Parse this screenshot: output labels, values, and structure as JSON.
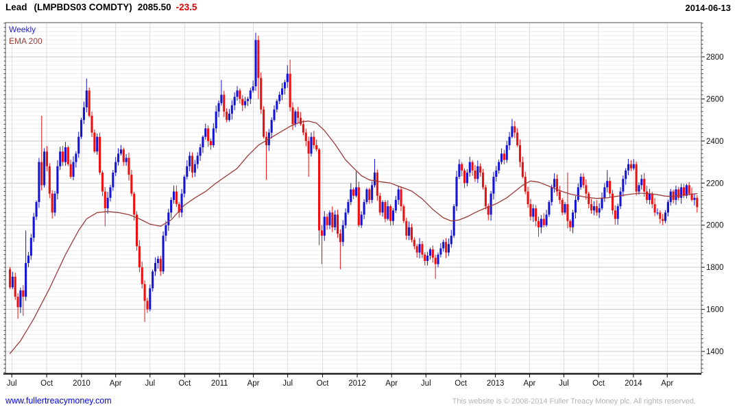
{
  "header": {
    "instrument": "Lead",
    "code": "(LMPBDS03 COMDTY)",
    "last": "2085.50",
    "change": "-23.5",
    "date": "2014-06-13"
  },
  "legend": {
    "series": "Weekly",
    "ema": "EMA 200"
  },
  "footer": {
    "site": "www.fullertreacymoney.com",
    "copyright": "This website is © 2008-2014 Fuller Treacy Money plc. All rights reserved."
  },
  "colors": {
    "candle_up": "#1414d7",
    "candle_down": "#ee1010",
    "ema_line": "#9b3a36",
    "legend_weekly": "#2323c8",
    "change_negative": "#e00000",
    "title_text": "#000000",
    "axis_text": "#111111",
    "link": "#0000e6",
    "copyright": "#b4b4b4",
    "grid_minor": "#ededed",
    "grid_major": "#c8c8c8",
    "grid_vertical": "#dcdcdc",
    "border": "#555555",
    "axis_line": "#111111"
  },
  "chart_data": {
    "type": "candlestick",
    "interval": "weekly",
    "title": "Lead (LMPBDS03 COMDTY)",
    "last_price": 2085.5,
    "change": -23.5,
    "as_of_date": "2014-06-13",
    "grid": true,
    "y_axis": {
      "side": "right",
      "labeled_ticks": [
        2800,
        2600,
        2400,
        2200,
        2000,
        1800,
        1600,
        1400
      ],
      "minor_step": 20,
      "price_top": 2963,
      "price_bottom": 1296
    },
    "x_axis": {
      "ticks": [
        [
          "Jul",
          0.7
        ],
        [
          "Oct",
          13.9
        ],
        [
          "2010",
          27.1
        ],
        [
          "Apr",
          40.0
        ],
        [
          "Jul",
          53.0
        ],
        [
          "Oct",
          66.1
        ],
        [
          "2011",
          79.3
        ],
        [
          "Apr",
          92.1
        ],
        [
          "Jul",
          105.1
        ],
        [
          "Oct",
          118.3
        ],
        [
          "2012",
          131.4
        ],
        [
          "Apr",
          144.4
        ],
        [
          "Jul",
          157.4
        ],
        [
          "Oct",
          170.6
        ],
        [
          "2013",
          183.7
        ],
        [
          "Apr",
          196.6
        ],
        [
          "Jul",
          209.6
        ],
        [
          "Oct",
          222.7
        ],
        [
          "2014",
          235.9
        ],
        [
          "Apr",
          248.7
        ]
      ]
    },
    "weeks": 261,
    "first_open": 1790,
    "closes": [
      1705,
      1755,
      1660,
      1610,
      1690,
      1660,
      1820,
      1855,
      1940,
      2040,
      2110,
      2300,
      2190,
      2350,
      2280,
      2150,
      2060,
      2150,
      2280,
      2350,
      2300,
      2370,
      2290,
      2230,
      2300,
      2340,
      2420,
      2500,
      2560,
      2640,
      2520,
      2440,
      2350,
      2420,
      2250,
      2160,
      2080,
      2130,
      2180,
      2250,
      2300,
      2340,
      2360,
      2300,
      2320,
      2240,
      2150,
      2050,
      1900,
      1800,
      1720,
      1640,
      1600,
      1700,
      1780,
      1820,
      1840,
      1780,
      1950,
      2000,
      2060,
      2120,
      2160,
      2100,
      2060,
      2150,
      2230,
      2280,
      2330,
      2250,
      2290,
      2330,
      2370,
      2420,
      2460,
      2400,
      2380,
      2460,
      2540,
      2580,
      2620,
      2540,
      2500,
      2530,
      2570,
      2610,
      2640,
      2600,
      2570,
      2590,
      2600,
      2640,
      2660,
      2880,
      2700,
      2550,
      2420,
      2380,
      2440,
      2500,
      2550,
      2590,
      2620,
      2650,
      2680,
      2720,
      2560,
      2480,
      2540,
      2510,
      2480,
      2440,
      2400,
      2340,
      2420,
      2380,
      2360,
      1975,
      1950,
      2040,
      2000,
      2060,
      1990,
      2050,
      1960,
      1920,
      2000,
      2060,
      2110,
      2170,
      2140,
      2180,
      2000,
      2050,
      2110,
      2170,
      2120,
      2190,
      2250,
      2140,
      2060,
      2110,
      2030,
      2090,
      2020,
      2070,
      2120,
      2170,
      2090,
      2020,
      1950,
      1990,
      1930,
      1900,
      1870,
      1910,
      1860,
      1830,
      1855,
      1885,
      1845,
      1815,
      1860,
      1890,
      1920,
      1870,
      1910,
      1950,
      2090,
      2230,
      2290,
      2260,
      2200,
      2250,
      2300,
      2260,
      2220,
      2280,
      2250,
      2180,
      2090,
      2050,
      2150,
      2230,
      2260,
      2300,
      2340,
      2310,
      2380,
      2420,
      2470,
      2440,
      2380,
      2300,
      2230,
      2160,
      2100,
      2040,
      2080,
      2020,
      1990,
      2030,
      2000,
      2050,
      2110,
      2180,
      2220,
      2160,
      2120,
      2060,
      2100,
      2020,
      1990,
      2060,
      2120,
      2180,
      2230,
      2190,
      2150,
      2100,
      2070,
      2090,
      2060,
      2080,
      2130,
      2180,
      2210,
      2150,
      2070,
      2030,
      2090,
      2160,
      2220,
      2260,
      2290,
      2270,
      2290,
      2160,
      2190,
      2220,
      2160,
      2120,
      2150,
      2100,
      2060,
      2060,
      2030,
      2020,
      2060,
      2110,
      2160,
      2120,
      2170,
      2130,
      2180,
      2140,
      2190,
      2150,
      2120,
      2130,
      2085.5
    ],
    "wick_overrides": {
      "3": {
        "low": 1555
      },
      "5": {
        "low": 1570
      },
      "6": {
        "high": 1975
      },
      "12": {
        "high": 2520
      },
      "29": {
        "high": 2697
      },
      "36": {
        "low": 1995
      },
      "51": {
        "low": 1540
      },
      "80": {
        "high": 2690
      },
      "93": {
        "high": 2915
      },
      "94": {
        "low": 2600
      },
      "97": {
        "low": 2215
      },
      "105": {
        "high": 2760
      },
      "106": {
        "high": 2787
      },
      "113": {
        "low": 2230
      },
      "117": {
        "low": 1905
      },
      "118": {
        "low": 1815
      },
      "125": {
        "low": 1790
      },
      "129": {
        "high": 2200
      },
      "131": {
        "high": 2255
      },
      "138": {
        "high": 2315
      },
      "161": {
        "low": 1745
      },
      "190": {
        "high": 2505
      },
      "200": {
        "low": 1945
      },
      "211": {
        "high": 2250,
        "low": 1985
      },
      "226": {
        "high": 2262
      },
      "247": {
        "low": 2000
      }
    },
    "ema": {
      "label": "EMA 200",
      "anchors": [
        [
          0,
          1390
        ],
        [
          4,
          1450
        ],
        [
          9,
          1555
        ],
        [
          15,
          1700
        ],
        [
          21,
          1860
        ],
        [
          26,
          1975
        ],
        [
          29,
          2030
        ],
        [
          33,
          2060
        ],
        [
          37,
          2065
        ],
        [
          41,
          2060
        ],
        [
          45,
          2050
        ],
        [
          49,
          2030
        ],
        [
          53,
          2005
        ],
        [
          57,
          1995
        ],
        [
          61,
          2025
        ],
        [
          66,
          2095
        ],
        [
          70,
          2130
        ],
        [
          74,
          2160
        ],
        [
          78,
          2200
        ],
        [
          82,
          2235
        ],
        [
          86,
          2270
        ],
        [
          90,
          2330
        ],
        [
          94,
          2380
        ],
        [
          98,
          2410
        ],
        [
          102,
          2440
        ],
        [
          106,
          2470
        ],
        [
          110,
          2490
        ],
        [
          113,
          2495
        ],
        [
          116,
          2485
        ],
        [
          119,
          2450
        ],
        [
          123,
          2385
        ],
        [
          127,
          2310
        ],
        [
          130,
          2272
        ],
        [
          133,
          2235
        ],
        [
          136,
          2215
        ],
        [
          140,
          2207
        ],
        [
          144,
          2200
        ],
        [
          147,
          2185
        ],
        [
          150,
          2172
        ],
        [
          152,
          2162
        ],
        [
          156,
          2125
        ],
        [
          160,
          2075
        ],
        [
          164,
          2035
        ],
        [
          167,
          2020
        ],
        [
          170,
          2025
        ],
        [
          173,
          2040
        ],
        [
          176,
          2060
        ],
        [
          180,
          2082
        ],
        [
          184,
          2102
        ],
        [
          188,
          2130
        ],
        [
          191,
          2160
        ],
        [
          194,
          2190
        ],
        [
          197,
          2210
        ],
        [
          200,
          2205
        ],
        [
          203,
          2190
        ],
        [
          206,
          2175
        ],
        [
          209,
          2160
        ],
        [
          212,
          2148
        ],
        [
          215,
          2140
        ],
        [
          218,
          2133
        ],
        [
          222,
          2127
        ],
        [
          226,
          2130
        ],
        [
          230,
          2138
        ],
        [
          234,
          2146
        ],
        [
          238,
          2152
        ],
        [
          242,
          2150
        ],
        [
          245,
          2145
        ],
        [
          248,
          2138
        ],
        [
          251,
          2136
        ],
        [
          254,
          2142
        ],
        [
          257,
          2147
        ],
        [
          260,
          2150
        ]
      ]
    }
  }
}
